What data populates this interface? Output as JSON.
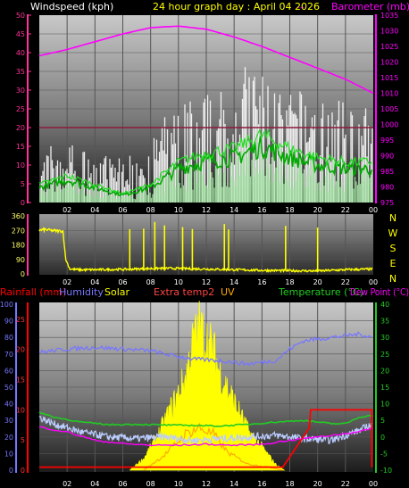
{
  "header": {
    "wind_title": "Windspeed (kph)",
    "graph_title": "24 hour graph day : April 04 2026",
    "graph_title_suffix": "---",
    "baro_title": "Barometer (mb)"
  },
  "colors": {
    "background": "#000000",
    "wind_axis": "#ff3399",
    "baro_axis": "#ff00ff",
    "gust": "#ffffff",
    "wind_avg": "#aaeeaa",
    "wind_dark": "#00aa00",
    "pressure": "#ff00ff",
    "direction": "#ffff00",
    "compass": "#ffff00",
    "rain": "#ff0000",
    "humidity": "#7777ff",
    "solar": "#ffff00",
    "uv": "#ffaa00",
    "temperature": "#22cc22",
    "dewpoint": "#ff00ff",
    "wind_chill": "#bbccff"
  },
  "x_ticks": [
    "02",
    "04",
    "06",
    "08",
    "10",
    "12",
    "14",
    "16",
    "18",
    "20",
    "22",
    "00"
  ],
  "wind_chart": {
    "type": "area",
    "left_ticks": [
      "0",
      "5",
      "10",
      "15",
      "20",
      "25",
      "30",
      "35",
      "40",
      "45",
      "50"
    ],
    "right_ticks": [
      "975",
      "980",
      "985",
      "990",
      "995",
      "1000",
      "1005",
      "1010",
      "1015",
      "1020",
      "1025",
      "1030",
      "1035"
    ],
    "ylim": [
      0,
      50
    ],
    "y2lim": [
      975,
      1035
    ],
    "pressure": [
      {
        "h": 0,
        "v": 1022
      },
      {
        "h": 2,
        "v": 1024
      },
      {
        "h": 4,
        "v": 1026.5
      },
      {
        "h": 6,
        "v": 1029
      },
      {
        "h": 8,
        "v": 1031
      },
      {
        "h": 10,
        "v": 1031.5
      },
      {
        "h": 12,
        "v": 1030.5
      },
      {
        "h": 14,
        "v": 1028
      },
      {
        "h": 16,
        "v": 1025
      },
      {
        "h": 18,
        "v": 1021.5
      },
      {
        "h": 20,
        "v": 1018
      },
      {
        "h": 22,
        "v": 1014.5
      },
      {
        "h": 24,
        "v": 1010
      }
    ],
    "reference_line": {
      "value": 20,
      "note": ""
    },
    "gust_profile": [
      {
        "h": 0,
        "v": 14
      },
      {
        "h": 2,
        "v": 15
      },
      {
        "h": 4,
        "v": 12
      },
      {
        "h": 6,
        "v": 11
      },
      {
        "h": 8,
        "v": 15
      },
      {
        "h": 9,
        "v": 21
      },
      {
        "h": 10,
        "v": 24
      },
      {
        "h": 12,
        "v": 27
      },
      {
        "h": 14,
        "v": 28
      },
      {
        "h": 15,
        "v": 35
      },
      {
        "h": 16,
        "v": 32
      },
      {
        "h": 18,
        "v": 27
      },
      {
        "h": 20,
        "v": 28
      },
      {
        "h": 22,
        "v": 24
      },
      {
        "h": 24,
        "v": 23
      }
    ],
    "avg_profile": [
      {
        "h": 0,
        "v": 4
      },
      {
        "h": 2,
        "v": 6
      },
      {
        "h": 4,
        "v": 4
      },
      {
        "h": 6,
        "v": 2
      },
      {
        "h": 8,
        "v": 4
      },
      {
        "h": 10,
        "v": 9
      },
      {
        "h": 12,
        "v": 11
      },
      {
        "h": 14,
        "v": 12
      },
      {
        "h": 16,
        "v": 15
      },
      {
        "h": 18,
        "v": 12
      },
      {
        "h": 20,
        "v": 10
      },
      {
        "h": 22,
        "v": 9
      },
      {
        "h": 24,
        "v": 9
      }
    ]
  },
  "direction_chart": {
    "type": "scatter",
    "left_ticks": [
      "0",
      "90",
      "180",
      "270",
      "360"
    ],
    "compass": [
      "N",
      "W",
      "S",
      "E",
      "N"
    ],
    "ylim": [
      0,
      360
    ],
    "spike_hours": [
      6.5,
      7.5,
      8.3,
      9.0,
      10.3,
      11.0,
      13.3,
      13.6,
      17.7,
      20.0
    ],
    "base_profile": [
      {
        "h": 0,
        "v": 270
      },
      {
        "h": 0.4,
        "v": 275
      },
      {
        "h": 1.0,
        "v": 268
      },
      {
        "h": 1.7,
        "v": 265
      },
      {
        "h": 1.9,
        "v": 90
      },
      {
        "h": 2.2,
        "v": 30
      },
      {
        "h": 3,
        "v": 25
      },
      {
        "h": 6,
        "v": 28
      },
      {
        "h": 9,
        "v": 35
      },
      {
        "h": 12,
        "v": 30
      },
      {
        "h": 16,
        "v": 22
      },
      {
        "h": 20,
        "v": 18
      },
      {
        "h": 22,
        "v": 26
      },
      {
        "h": 24,
        "v": 30
      }
    ]
  },
  "bottom_chart": {
    "type": "line",
    "legend": {
      "rainfall": "Rainfall (mm)",
      "humidity": "Humidity",
      "solar": "Solar",
      "extra": "Extra temp2",
      "uv": "UV",
      "temperature": "Temperature (°C)",
      "dewpoint": "Dew Point (°C)"
    },
    "left_outer_ticks": [
      "0",
      "10",
      "20",
      "30",
      "40",
      "50",
      "60",
      "70",
      "80",
      "90",
      "100"
    ],
    "left_inner_ticks": [
      "0",
      "5",
      "10",
      "15",
      "20",
      "25"
    ],
    "right_ticks": [
      "-10",
      "-5",
      "0",
      "5",
      "10",
      "15",
      "20",
      "25",
      "30",
      "35",
      "40"
    ],
    "humidity": [
      {
        "h": 0,
        "v": 71
      },
      {
        "h": 2,
        "v": 73
      },
      {
        "h": 4,
        "v": 74
      },
      {
        "h": 6,
        "v": 73
      },
      {
        "h": 8,
        "v": 72
      },
      {
        "h": 9,
        "v": 70
      },
      {
        "h": 11,
        "v": 67
      },
      {
        "h": 13,
        "v": 66
      },
      {
        "h": 15,
        "v": 64
      },
      {
        "h": 17,
        "v": 66
      },
      {
        "h": 18,
        "v": 73
      },
      {
        "h": 19,
        "v": 78
      },
      {
        "h": 21,
        "v": 80
      },
      {
        "h": 23,
        "v": 82
      },
      {
        "h": 24,
        "v": 80
      }
    ],
    "temperature": [
      {
        "h": 0,
        "v": 7.5
      },
      {
        "h": 1,
        "v": 6
      },
      {
        "h": 3,
        "v": 4.5
      },
      {
        "h": 5,
        "v": 3.7
      },
      {
        "h": 7,
        "v": 3.8
      },
      {
        "h": 9,
        "v": 3.6
      },
      {
        "h": 11,
        "v": 3.5
      },
      {
        "h": 13,
        "v": 3.3
      },
      {
        "h": 15,
        "v": 3.8
      },
      {
        "h": 17,
        "v": 4.5
      },
      {
        "h": 19,
        "v": 5
      },
      {
        "h": 21,
        "v": 4
      },
      {
        "h": 22,
        "v": 4
      },
      {
        "h": 23,
        "v": 6
      },
      {
        "h": 24,
        "v": 6.5
      }
    ],
    "dewpoint": [
      {
        "h": 0,
        "v": 3
      },
      {
        "h": 2,
        "v": 1.5
      },
      {
        "h": 4,
        "v": -1
      },
      {
        "h": 6,
        "v": -2
      },
      {
        "h": 8,
        "v": -2.5
      },
      {
        "h": 10,
        "v": -2.5
      },
      {
        "h": 12,
        "v": -2.2
      },
      {
        "h": 14,
        "v": -2.5
      },
      {
        "h": 16,
        "v": -2.2
      },
      {
        "h": 18,
        "v": -1
      },
      {
        "h": 20,
        "v": 0
      },
      {
        "h": 22,
        "v": 1
      },
      {
        "h": 24,
        "v": 2.5
      }
    ],
    "wind_chill": [
      {
        "h": 0,
        "v": 6
      },
      {
        "h": 1,
        "v": 4
      },
      {
        "h": 3,
        "v": 1.5
      },
      {
        "h": 5,
        "v": 0
      },
      {
        "h": 7,
        "v": -0.5
      },
      {
        "h": 9,
        "v": 0
      },
      {
        "h": 11,
        "v": -1
      },
      {
        "h": 13,
        "v": -0.5
      },
      {
        "h": 15,
        "v": 0
      },
      {
        "h": 17,
        "v": 0.5
      },
      {
        "h": 19,
        "v": -0.5
      },
      {
        "h": 21,
        "v": -1
      },
      {
        "h": 23,
        "v": 2
      },
      {
        "h": 24,
        "v": 4
      }
    ],
    "solar": [
      {
        "h": 6.5,
        "v": 0
      },
      {
        "h": 7.5,
        "v": 2
      },
      {
        "h": 8.5,
        "v": 6
      },
      {
        "h": 9.5,
        "v": 11
      },
      {
        "h": 10.5,
        "v": 16
      },
      {
        "h": 11,
        "v": 22
      },
      {
        "h": 11.5,
        "v": 25
      },
      {
        "h": 12,
        "v": 23
      },
      {
        "h": 12.5,
        "v": 21
      },
      {
        "h": 13,
        "v": 17
      },
      {
        "h": 14,
        "v": 12
      },
      {
        "h": 15,
        "v": 7
      },
      {
        "h": 16,
        "v": 4
      },
      {
        "h": 17,
        "v": 1
      },
      {
        "h": 17.6,
        "v": 0
      }
    ],
    "uv": [
      {
        "h": 7.5,
        "v": 0
      },
      {
        "h": 9,
        "v": 2.5
      },
      {
        "h": 10.5,
        "v": 6
      },
      {
        "h": 11.5,
        "v": 7
      },
      {
        "h": 12.5,
        "v": 6
      },
      {
        "h": 13.5,
        "v": 3
      },
      {
        "h": 15,
        "v": 1
      },
      {
        "h": 16.5,
        "v": 0.5
      },
      {
        "h": 17.5,
        "v": 0
      }
    ],
    "rain": [
      {
        "h": 0,
        "v": 0.5
      },
      {
        "h": 17.5,
        "v": 0.5
      },
      {
        "h": 19.4,
        "v": 7
      },
      {
        "h": 19.5,
        "v": 10
      },
      {
        "h": 23.9,
        "v": 10
      },
      {
        "h": 23.9,
        "v": 0.5
      }
    ]
  }
}
